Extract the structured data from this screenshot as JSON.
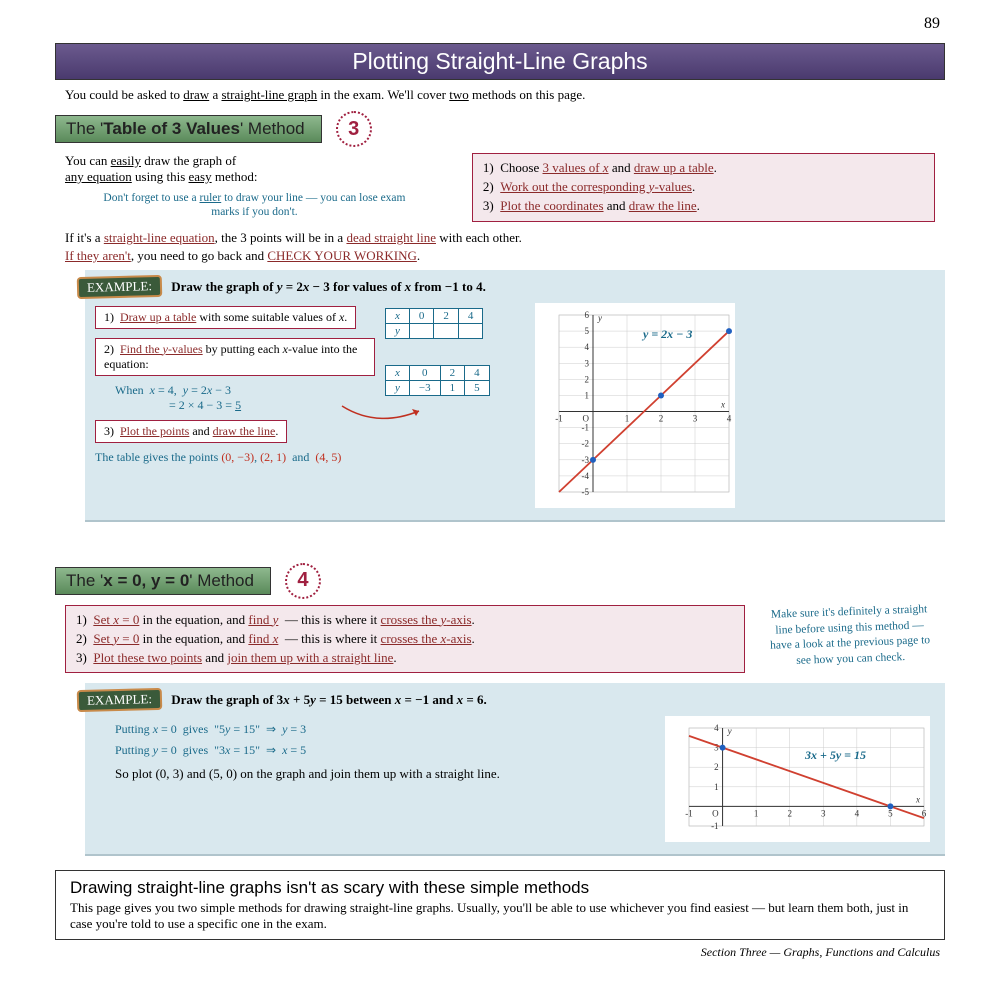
{
  "page_number": "89",
  "title": "Plotting Straight-Line Graphs",
  "intro_parts": [
    "You could be asked to ",
    "draw",
    " a ",
    "straight-line graph",
    " in the exam.  We'll cover ",
    "two",
    " methods on this page."
  ],
  "section1": {
    "head_pre": "The '",
    "head_bold": "Table of 3 Values",
    "head_post": "' Method",
    "grade": "3",
    "left_line1": "You can ",
    "left_u1": "easily",
    "left_line2": " draw the graph of",
    "left_line3_u": "any equation",
    "left_line3b": " using this ",
    "left_u2": "easy",
    "left_line3c": " method:",
    "tip": "Don't forget to use a <u>ruler</u> to draw your line — you can lose exam marks if you don't.",
    "steps": [
      "Choose <span class='ur'>3 values of <span class='it'>x</span></span> and <span class='ur'>draw up a table</span>.",
      "<span class='ur'>Work out the corresponding <span class='it'>y</span>-values</span>.",
      "<span class='ur'>Plot the coordinates</span> and <span class='ur'>draw the line</span>."
    ],
    "followup": "If it's a <span class='ur'>straight-line equation</span>, the 3 points will be in a <span class='ur'>dead straight line</span> with each other.<br><span class='ur'>If they aren't</span>, you need to go back and <span class='ur'>CHECK YOUR WORKING</span>.",
    "ex_title": "Draw the graph of <span class='it'>y</span> = 2<span class='it'>x</span> − 3 for values of <span class='it'>x</span> from −1 to 4.",
    "step1": "<span class='ur'>Draw up a table</span> with some suitable values of <span class='it'>x</span>.",
    "step2": "<span class='ur'>Find the <span class='it'>y</span>-values</span> by putting each <span class='it'>x</span>-value into the equation:",
    "working": "When &nbsp;<span class='it'>x</span> = 4, &nbsp;<span class='it'>y</span> = 2<span class='it'>x</span> − 3<br>&nbsp;&nbsp;&nbsp;&nbsp;&nbsp;&nbsp;&nbsp;&nbsp;&nbsp;&nbsp;&nbsp;&nbsp;&nbsp;&nbsp;&nbsp;&nbsp;&nbsp;&nbsp;= 2 × 4 − 3 = <u>5</u>",
    "step3": "<span class='ur'>Plot the points</span> and <span class='ur'>draw the line</span>.",
    "result": "The table gives the points <span class='red-hand'>(0, &minus;3)</span>, <span class='red-hand'>(2, 1)</span> &nbsp;and&nbsp; <span class='red-hand'>(4, 5)</span>",
    "table1": {
      "h": [
        "x",
        "0",
        "2",
        "4"
      ],
      "r": [
        "y",
        "",
        "",
        ""
      ]
    },
    "table2": {
      "h": [
        "x",
        "0",
        "2",
        "4"
      ],
      "r": [
        "y",
        "−3",
        "1",
        "5"
      ]
    },
    "chart": {
      "eq": "y = 2x − 3",
      "xrange": [
        -1,
        4
      ],
      "yrange": [
        -5,
        6
      ],
      "pts": [
        [
          0,
          -3
        ],
        [
          2,
          1
        ],
        [
          4,
          5
        ]
      ],
      "line": [
        [
          -1,
          -5
        ],
        [
          4,
          5
        ]
      ],
      "line_color": "#d04030",
      "pt_color": "#2060c0"
    }
  },
  "section2": {
    "head_pre": "The '",
    "head_bold": "x = 0, y = 0",
    "head_post": "' Method",
    "grade": "4",
    "steps": [
      "<span class='ur'>Set <span class='it'>x</span> = 0</span> in the equation, and <span class='ur'>find <span class='it'>y</span></span> &nbsp;— this is where it <span class='ur'>crosses the <span class='it'>y</span>-axis</span>.",
      "<span class='ur'>Set <span class='it'>y</span> = 0</span> in the equation, and <span class='ur'>find <span class='it'>x</span></span> &nbsp;— this is where it <span class='ur'>crosses the <span class='it'>x</span>-axis</span>.",
      "<span class='ur'>Plot these two points</span> and <span class='ur'>join them up with a straight line</span>."
    ],
    "side_tip": "Make sure it's definitely a straight line before using this method — have a look at the previous page to see how you can check.",
    "ex_title": "Draw the graph of 3<span class='it'>x</span> + 5<span class='it'>y</span> = 15 between <span class='it'>x</span> = −1 and <span class='it'>x</span> = 6.",
    "w1": "Putting <span class='it'>x</span> = 0 &nbsp;gives &nbsp;\"5<span class='it'>y</span> = 15\" &nbsp;&rArr;&nbsp; <span class='it'>y</span> = 3",
    "w2": "Putting <span class='it'>y</span> = 0 &nbsp;gives &nbsp;\"3<span class='it'>x</span> = 15\" &nbsp;&rArr;&nbsp; <span class='it'>x</span> = 5",
    "concl": "So plot (0, 3) and (5, 0) on the graph and join them up with a straight line.",
    "chart": {
      "eq": "3x + 5y = 15",
      "xrange": [
        -1,
        6
      ],
      "yrange": [
        -1,
        4
      ],
      "pts": [
        [
          0,
          3
        ],
        [
          5,
          0
        ]
      ],
      "line": [
        [
          -1,
          3.6
        ],
        [
          6,
          -0.6
        ]
      ],
      "line_color": "#d04030",
      "pt_color": "#2060c0"
    }
  },
  "summary": {
    "title": "Drawing straight-line graphs isn't as scary with these simple methods",
    "body": "This page gives you two simple methods for drawing straight-line graphs.  Usually, you'll be able to use whichever you find easiest — but learn them both, just in case you're told to use a specific one in the exam."
  },
  "footer": "Section Three — Graphs, Functions and Calculus"
}
